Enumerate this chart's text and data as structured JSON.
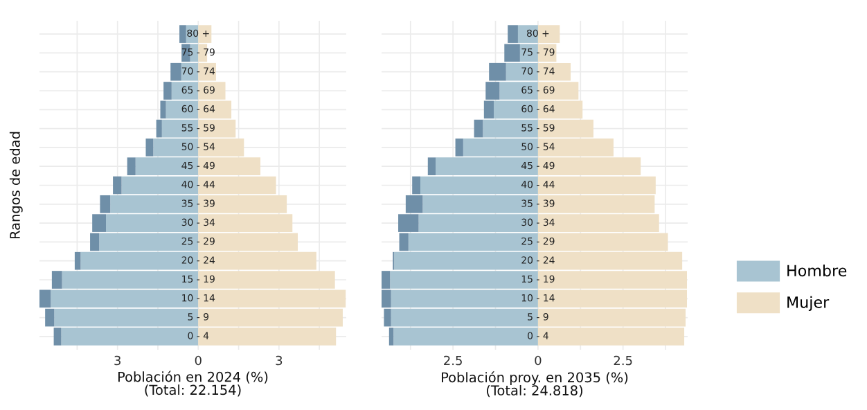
{
  "chart_data": [
    {
      "type": "bar",
      "orientation": "horizontal",
      "stacked": true,
      "grid": true,
      "legend": "right",
      "xlabel": "Población en 2024 (%)\n(Total: 22.154)",
      "ylabel": "Rangos de edad",
      "categories": [
        "80 +",
        "75 - 79",
        "70 - 74",
        "65 - 69",
        "60 - 64",
        "55 - 59",
        "50 - 54",
        "45 - 49",
        "40 - 44",
        "35 - 39",
        "30 - 34",
        "25 - 29",
        "20 - 24",
        "15 - 19",
        "10 - 14",
        "5 - 9",
        "0 - 4"
      ],
      "xlim": [
        -5.9,
        5.5
      ],
      "xticks": [
        {
          "value": -4.5,
          "label": null
        },
        {
          "value": -3,
          "label": "3"
        },
        {
          "value": -1.5,
          "label": null
        },
        0,
        {
          "value": 1.5,
          "label": null
        },
        {
          "value": 3,
          "label": "3"
        },
        {
          "value": 4.5,
          "label": null
        }
      ],
      "series": [
        {
          "name": "Hombre",
          "color": "#a8c4d2",
          "values": [
            -0.45,
            -0.3,
            -0.63,
            -0.99,
            -1.2,
            -1.35,
            -1.67,
            -2.33,
            -2.85,
            -3.27,
            -3.43,
            -3.68,
            -4.37,
            -5.06,
            -5.48,
            -5.35,
            -5.09
          ]
        },
        {
          "color": "#6f8fa8",
          "values": [
            -0.25,
            -0.32,
            -0.4,
            -0.3,
            -0.21,
            -0.21,
            -0.28,
            -0.31,
            -0.32,
            -0.38,
            -0.51,
            -0.34,
            -0.22,
            -0.38,
            -0.42,
            -0.34,
            -0.28
          ]
        },
        {
          "name": "Mujer",
          "color": "#efe0c6",
          "values": [
            0.49,
            0.33,
            0.66,
            1.01,
            1.23,
            1.39,
            1.7,
            2.31,
            2.89,
            3.29,
            3.5,
            3.7,
            4.39,
            5.08,
            5.48,
            5.37,
            5.12
          ]
        }
      ]
    },
    {
      "type": "bar",
      "orientation": "horizontal",
      "stacked": true,
      "grid": true,
      "legend": "right",
      "xlabel": "Población proy. en 2035 (%)\n(Total: 24.818)",
      "categories": [
        "80 +",
        "75 - 79",
        "70 - 74",
        "65 - 69",
        "60 - 64",
        "55 - 59",
        "50 - 54",
        "45 - 49",
        "40 - 44",
        "35 - 39",
        "30 - 34",
        "25 - 29",
        "20 - 24",
        "15 - 19",
        "10 - 14",
        "5 - 9",
        "0 - 4"
      ],
      "xlim": [
        -4.6,
        4.4
      ],
      "xticks": [
        {
          "value": -3.75,
          "label": null
        },
        {
          "value": -2.5,
          "label": "2.5"
        },
        {
          "value": -1.25,
          "label": null
        },
        0,
        {
          "value": 1.25,
          "label": null
        },
        {
          "value": 2.5,
          "label": "2.5"
        },
        {
          "value": 3.75,
          "label": null
        }
      ],
      "series": [
        {
          "name": "Hombre",
          "color": "#a8c4d2",
          "values": [
            -0.59,
            -0.53,
            -0.94,
            -1.13,
            -1.3,
            -1.62,
            -2.2,
            -3.01,
            -3.46,
            -3.39,
            -3.51,
            -3.81,
            -4.23,
            -4.35,
            -4.32,
            -4.32,
            -4.25
          ]
        },
        {
          "color": "#6f8fa8",
          "values": [
            -0.3,
            -0.46,
            -0.5,
            -0.41,
            -0.29,
            -0.26,
            -0.23,
            -0.23,
            -0.24,
            -0.5,
            -0.6,
            -0.27,
            -0.04,
            -0.25,
            -0.28,
            -0.21,
            -0.13
          ]
        },
        {
          "name": "Mujer",
          "color": "#efe0c6",
          "values": [
            0.64,
            0.54,
            0.96,
            1.19,
            1.31,
            1.63,
            2.22,
            3.02,
            3.46,
            3.43,
            3.56,
            3.82,
            4.24,
            4.38,
            4.38,
            4.34,
            4.3
          ]
        }
      ]
    }
  ]
}
